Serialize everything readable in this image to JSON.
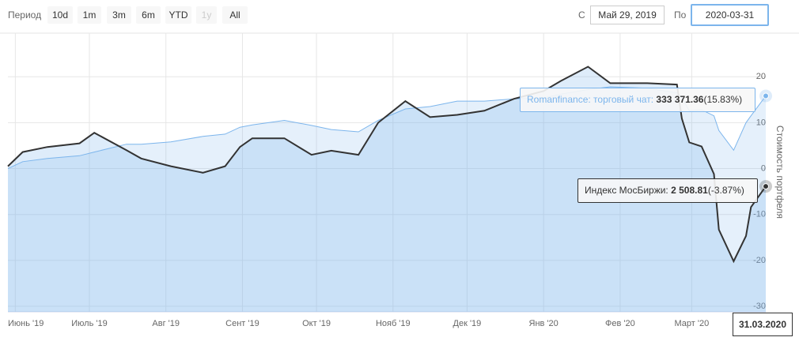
{
  "toolbar": {
    "period_label": "Период",
    "range_buttons": [
      "10d",
      "1m",
      "3m",
      "6m",
      "YTD",
      "1y",
      "All"
    ],
    "disabled_button": "1y",
    "from_label": "С",
    "from_value": "Май 29, 2019",
    "to_label": "По",
    "to_value": "2020-03-31"
  },
  "chart_data": {
    "type": "line",
    "x": [
      "2019-05-29",
      "2019-06-04",
      "2019-06-14",
      "2019-06-27",
      "2019-07-03",
      "2019-07-16",
      "2019-07-22",
      "2019-08-03",
      "2019-08-16",
      "2019-08-25",
      "2019-08-31",
      "2019-09-05",
      "2019-09-18",
      "2019-09-29",
      "2019-10-07",
      "2019-10-18",
      "2019-10-26",
      "2019-11-06",
      "2019-11-16",
      "2019-11-27",
      "2019-12-08",
      "2019-12-20",
      "2020-01-01",
      "2020-01-08",
      "2020-01-19",
      "2020-01-28",
      "2020-02-12",
      "2020-02-24",
      "2020-02-26",
      "2020-02-29",
      "2020-03-05",
      "2020-03-10",
      "2020-03-12",
      "2020-03-18",
      "2020-03-23",
      "2020-03-25",
      "2020-03-31"
    ],
    "series": [
      {
        "color": "#7cb5ec",
        "values": [
          0,
          1.5,
          2.2,
          2.8,
          3.6,
          5.3,
          5.3,
          5.8,
          7,
          7.5,
          9,
          9.5,
          10.5,
          9.4,
          8.5,
          8,
          10.5,
          13,
          13.5,
          14.7,
          14.7,
          15.2,
          15.4,
          16.2,
          17.2,
          17.8,
          17.5,
          16.5,
          15.5,
          12.6,
          12.8,
          11.5,
          8.3,
          4,
          10,
          11.5,
          15.83
        ]
      },
      {
        "color": "#333333",
        "values": [
          0.5,
          3.6,
          4.7,
          5.5,
          7.8,
          4,
          2.2,
          0.5,
          -0.9,
          0.5,
          4.7,
          6.6,
          6.6,
          3,
          3.9,
          3,
          10,
          14.7,
          11.2,
          11.7,
          12.6,
          15.2,
          16.9,
          19.1,
          22.2,
          18.6,
          18.6,
          18.3,
          10.9,
          5.7,
          4.8,
          -1.2,
          -13.3,
          -20.2,
          -14.7,
          -8.4,
          -3.87
        ]
      }
    ],
    "xlim": [
      "2019-05-29",
      "2020-03-31"
    ],
    "xticks": [
      {
        "value": "2019-06-01",
        "label": "Июнь '19"
      },
      {
        "value": "2019-07-01",
        "label": "Июль '19"
      },
      {
        "value": "2019-08-01",
        "label": "Авг '19"
      },
      {
        "value": "2019-09-01",
        "label": "Сент '19"
      },
      {
        "value": "2019-10-01",
        "label": "Окт '19"
      },
      {
        "value": "2019-11-01",
        "label": "Нояб '19"
      },
      {
        "value": "2019-12-01",
        "label": "Дек '19"
      },
      {
        "value": "2020-01-01",
        "label": "Янв '20"
      },
      {
        "value": "2020-02-01",
        "label": "Фев '20"
      },
      {
        "value": "2020-03-01",
        "label": "Март '20"
      }
    ],
    "ylim": [
      -31.2,
      29.5
    ],
    "yticks": [
      20,
      10,
      0,
      -10,
      -20,
      -30
    ],
    "y_axis_label": "Стоимость портфеля",
    "grid": true,
    "tooltips": [
      {
        "label": "Romanfinance: торговый чат:",
        "value": "333 371.36",
        "change": "(15.83%)"
      },
      {
        "label": "Индекс МосБиржи:",
        "value": "2 508.81",
        "change": "(-3.87%)"
      }
    ],
    "crosshair_label": "31.03.2020"
  }
}
